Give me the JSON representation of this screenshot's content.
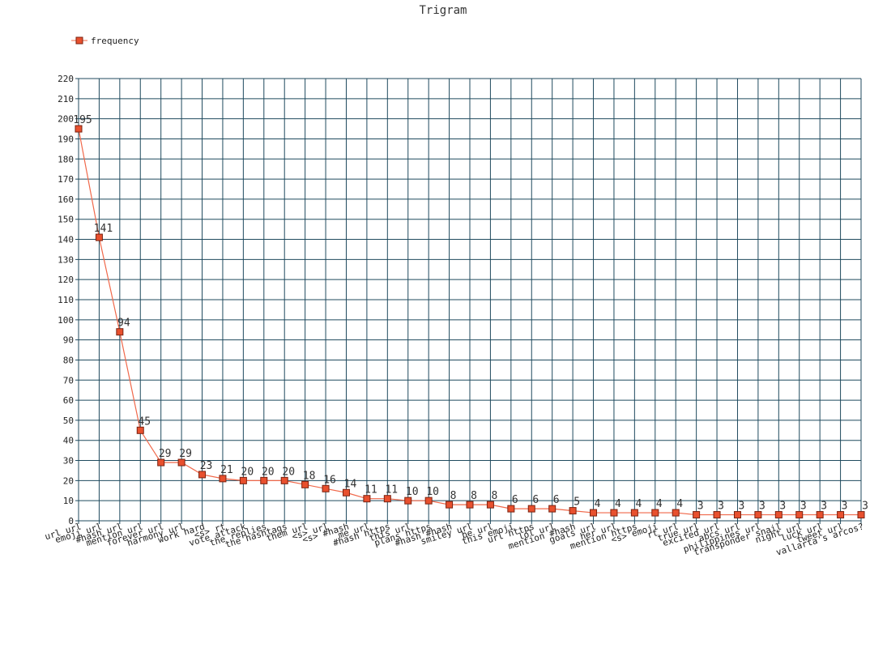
{
  "chart_data": {
    "type": "line",
    "title": "Trigram",
    "xlabel": "",
    "ylabel": "",
    "ylim": [
      0,
      220
    ],
    "y_ticks": [
      0,
      10,
      20,
      30,
      40,
      50,
      60,
      70,
      80,
      90,
      100,
      110,
      120,
      130,
      140,
      150,
      160,
      170,
      180,
      190,
      200,
      210,
      220
    ],
    "grid": true,
    "legend": "top-left",
    "categories": [
      "url url",
      "emoji url",
      "#hash url",
      "mention url",
      "forever url",
      "harmony url",
      "work hard",
      "<s> rt",
      "vote attack",
      "the replies",
      "the hashtags",
      "them url",
      "<s> url",
      "<s> #hash",
      "me url",
      "#hash https",
      "this url",
      "plans https",
      "#hash #hash",
      "smiley url",
      "be url",
      "this emoji",
      "url https",
      "lol url",
      "mention #hash",
      "goals url",
      "her url",
      "mention https",
      "<s> emoji",
      "rt url",
      "true url",
      "excited url",
      "abcs url",
      "philippines url",
      "transponder snail",
      "night url",
      "luck url",
      "tweet url",
      "vallarta's arcos?"
    ],
    "series": [
      {
        "name": "frequency",
        "values": [
          195,
          141,
          94,
          45,
          29,
          29,
          23,
          21,
          20,
          20,
          20,
          18,
          16,
          14,
          11,
          11,
          10,
          10,
          8,
          8,
          8,
          6,
          6,
          6,
          5,
          4,
          4,
          4,
          4,
          4,
          3,
          3,
          3,
          3,
          3,
          3,
          3,
          3,
          3
        ]
      }
    ],
    "colors": {
      "grid": "#1f4a5e",
      "line": "#f0684a",
      "marker_fill": "#e8502e",
      "marker_stroke": "#7a2210",
      "text": "#333333"
    }
  }
}
